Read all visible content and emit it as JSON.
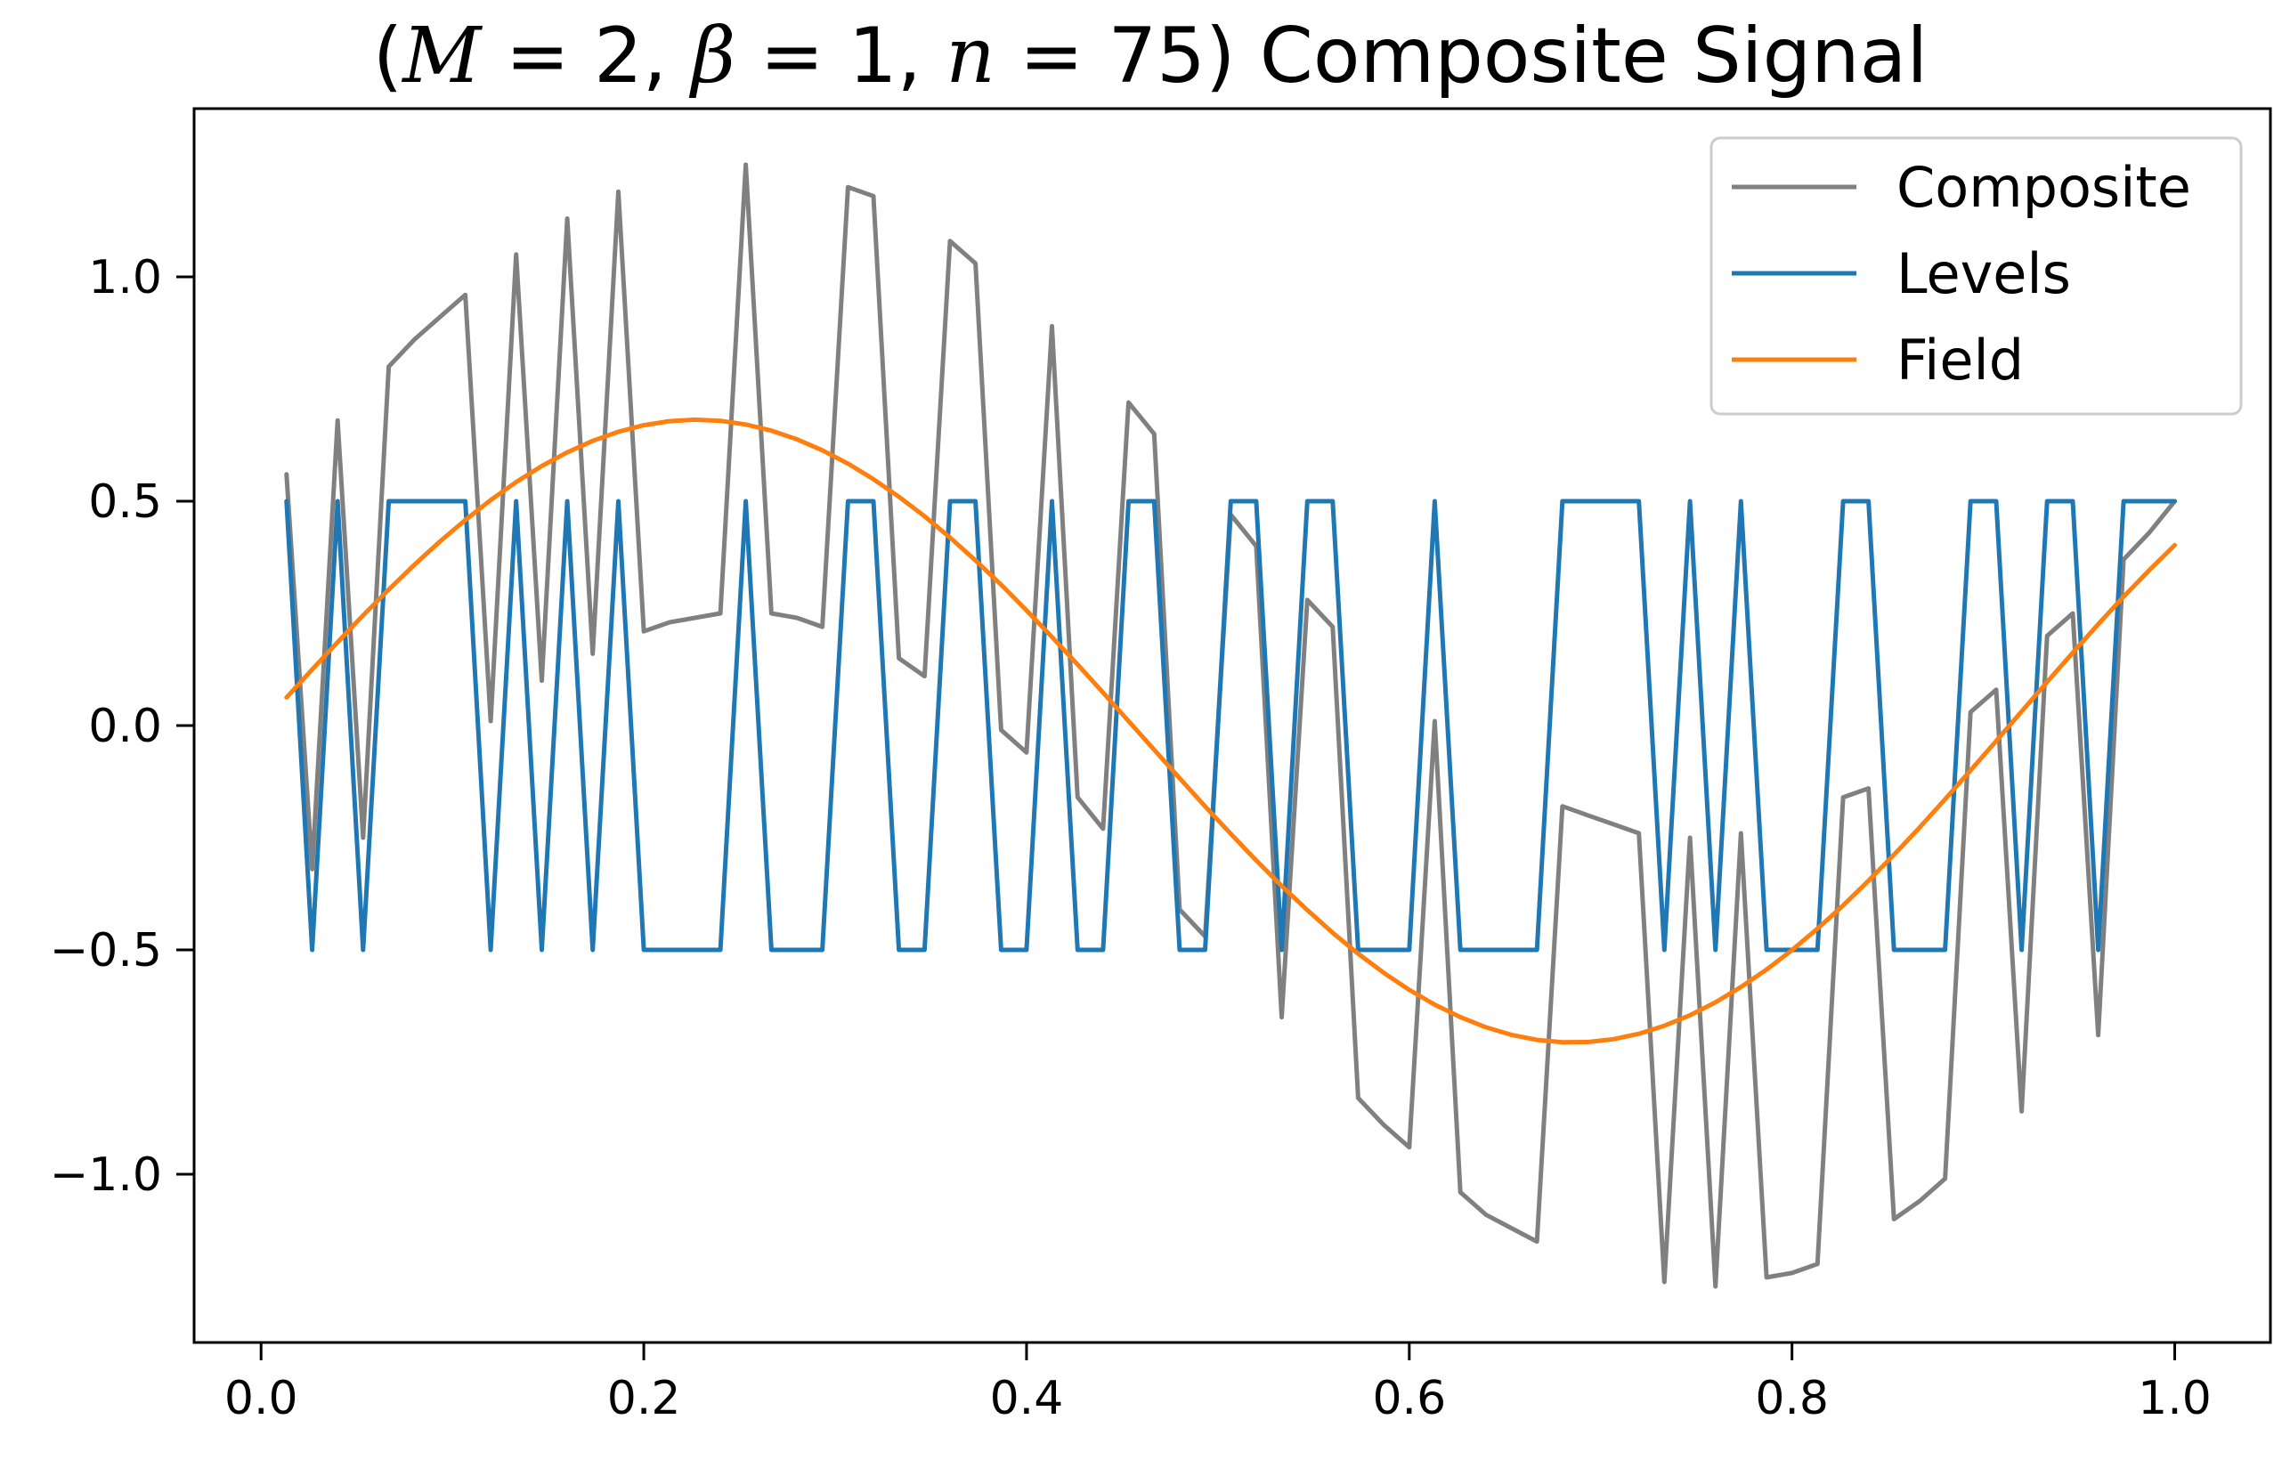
{
  "chart_data": {
    "type": "line",
    "title": "(M = 2, β = 1, n = 75) Composite Signal",
    "title_parts": {
      "open": "(",
      "m_sym": "M",
      "m_eq": " = 2, ",
      "beta_sym": "β",
      "beta_eq": " = 1, ",
      "n_sym": "n",
      "n_eq": " = 75)",
      "rest": " Composite Signal"
    },
    "xlabel": "",
    "ylabel": "",
    "xlim": [
      -0.035,
      1.05
    ],
    "ylim": [
      -1.375,
      1.375
    ],
    "x_ticks": [
      0.0,
      0.2,
      0.4,
      0.6,
      0.8,
      1.0
    ],
    "x_tick_labels": [
      "0.0",
      "0.2",
      "0.4",
      "0.6",
      "0.8",
      "1.0"
    ],
    "y_ticks": [
      -1.0,
      -0.5,
      0.0,
      0.5,
      1.0
    ],
    "y_tick_labels": [
      "−1.0",
      "−0.5",
      "0.0",
      "0.5",
      "1.0"
    ],
    "grid": false,
    "legend_position": "top-right",
    "x": [
      0.0133,
      0.0267,
      0.04,
      0.0533,
      0.0667,
      0.08,
      0.0933,
      0.1067,
      0.12,
      0.1333,
      0.1467,
      0.16,
      0.1733,
      0.1867,
      0.2,
      0.2133,
      0.2267,
      0.24,
      0.2533,
      0.2667,
      0.28,
      0.2933,
      0.3067,
      0.32,
      0.3333,
      0.3467,
      0.36,
      0.3733,
      0.3867,
      0.4,
      0.4133,
      0.4267,
      0.44,
      0.4533,
      0.4667,
      0.48,
      0.4933,
      0.5067,
      0.52,
      0.5333,
      0.5467,
      0.56,
      0.5733,
      0.5867,
      0.6,
      0.6133,
      0.6267,
      0.64,
      0.6533,
      0.6667,
      0.68,
      0.6933,
      0.7067,
      0.72,
      0.7333,
      0.7467,
      0.76,
      0.7733,
      0.7867,
      0.8,
      0.8133,
      0.8267,
      0.84,
      0.8533,
      0.8667,
      0.88,
      0.8933,
      0.9067,
      0.92,
      0.9333,
      0.9467,
      0.96,
      0.9733,
      0.9867,
      1.0
    ],
    "series": [
      {
        "name": "Composite",
        "color": "#808080",
        "values": [
          0.56,
          -0.32,
          0.68,
          -0.25,
          0.8,
          0.86,
          0.91,
          0.96,
          0.01,
          1.05,
          0.1,
          1.13,
          0.16,
          1.19,
          0.21,
          0.23,
          0.24,
          0.25,
          1.25,
          0.25,
          0.24,
          0.22,
          1.2,
          1.18,
          0.15,
          0.11,
          1.08,
          1.03,
          -0.01,
          -0.06,
          0.89,
          -0.16,
          -0.23,
          0.72,
          0.65,
          -0.41,
          -0.47,
          0.47,
          0.4,
          -0.65,
          0.28,
          0.22,
          -0.83,
          -0.89,
          -0.94,
          0.01,
          -1.04,
          -1.09,
          -1.12,
          -1.15,
          -0.18,
          -0.2,
          -0.22,
          -0.24,
          -1.24,
          -0.25,
          -1.25,
          -0.24,
          -1.23,
          -1.22,
          -1.2,
          -0.16,
          -0.14,
          -1.1,
          -1.06,
          -1.01,
          0.03,
          0.08,
          -0.86,
          0.2,
          0.25,
          -0.69,
          0.37,
          0.43,
          0.5
        ]
      },
      {
        "name": "Levels",
        "color": "#1f77b4",
        "values": [
          0.5,
          -0.5,
          0.5,
          -0.5,
          0.5,
          0.5,
          0.5,
          0.5,
          -0.5,
          0.5,
          -0.5,
          0.5,
          -0.5,
          0.5,
          -0.5,
          -0.5,
          -0.5,
          -0.5,
          0.5,
          -0.5,
          -0.5,
          -0.5,
          0.5,
          0.5,
          -0.5,
          -0.5,
          0.5,
          0.5,
          -0.5,
          -0.5,
          0.5,
          -0.5,
          -0.5,
          0.5,
          0.5,
          -0.5,
          -0.5,
          0.5,
          0.5,
          -0.5,
          0.5,
          0.5,
          -0.5,
          -0.5,
          -0.5,
          0.5,
          -0.5,
          -0.5,
          -0.5,
          -0.5,
          0.5,
          0.5,
          0.5,
          0.5,
          -0.5,
          0.5,
          -0.5,
          0.5,
          -0.5,
          -0.5,
          -0.5,
          0.5,
          0.5,
          -0.5,
          -0.5,
          -0.5,
          0.5,
          0.5,
          -0.5,
          0.5,
          0.5,
          -0.5,
          0.5,
          0.5,
          0.5
        ]
      },
      {
        "name": "Field",
        "color": "#ff7f0e",
        "values": [
          0.0627,
          0.1249,
          0.186,
          0.2456,
          0.3031,
          0.3579,
          0.4098,
          0.4581,
          0.5025,
          0.5427,
          0.5783,
          0.609,
          0.6345,
          0.6547,
          0.6694,
          0.6783,
          0.6817,
          0.6792,
          0.6711,
          0.6573,
          0.638,
          0.6134,
          0.5837,
          0.5491,
          0.5099,
          0.4665,
          0.4191,
          0.3681,
          0.3139,
          0.2568,
          0.1974,
          0.1362,
          0.0735,
          0.01,
          -0.0539,
          -0.1174,
          -0.1801,
          -0.2413,
          -0.3006,
          -0.3575,
          -0.4114,
          -0.4619,
          -0.5086,
          -0.5511,
          -0.589,
          -0.622,
          -0.6499,
          -0.6724,
          -0.6893,
          -0.7005,
          -0.7059,
          -0.7054,
          -0.6991,
          -0.687,
          -0.6691,
          -0.6457,
          -0.6168,
          -0.5828,
          -0.5439,
          -0.5004,
          -0.4526,
          -0.401,
          -0.3459,
          -0.2878,
          -0.2271,
          -0.1643,
          -0.0999,
          -0.0345,
          0.0315,
          0.0973,
          0.1623,
          0.2258,
          0.2873,
          0.3462,
          0.4019
        ]
      }
    ]
  }
}
